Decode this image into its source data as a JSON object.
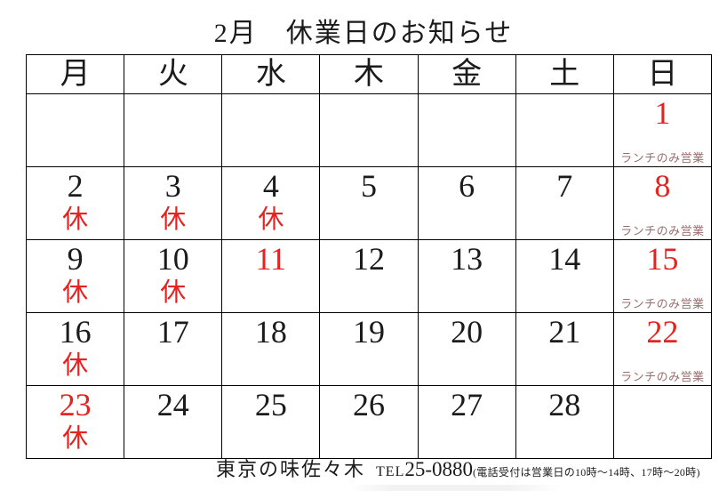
{
  "title": "2月　休業日のお知らせ",
  "colors": {
    "holiday_red": "#e62320",
    "text_black": "#1b1b1b",
    "lunch_note": "#9b6f6f",
    "grid_border": "#000000"
  },
  "weekdays": [
    "月",
    "火",
    "水",
    "木",
    "金",
    "土",
    "日"
  ],
  "weeks": [
    [
      {
        "day": "",
        "day_class": "day",
        "note": "",
        "note_class": "note"
      },
      {
        "day": "",
        "day_class": "day",
        "note": "",
        "note_class": "note"
      },
      {
        "day": "",
        "day_class": "day",
        "note": "",
        "note_class": "note"
      },
      {
        "day": "",
        "day_class": "day",
        "note": "",
        "note_class": "note"
      },
      {
        "day": "",
        "day_class": "day",
        "note": "",
        "note_class": "note"
      },
      {
        "day": "",
        "day_class": "day",
        "note": "",
        "note_class": "note"
      },
      {
        "day": "1",
        "day_class": "day red",
        "note": "ランチのみ営業",
        "note_class": "note lunch"
      }
    ],
    [
      {
        "day": "2",
        "day_class": "day",
        "note": "休",
        "note_class": "note kyu"
      },
      {
        "day": "3",
        "day_class": "day",
        "note": "休",
        "note_class": "note kyu"
      },
      {
        "day": "4",
        "day_class": "day",
        "note": "休",
        "note_class": "note kyu"
      },
      {
        "day": "5",
        "day_class": "day",
        "note": "",
        "note_class": "note"
      },
      {
        "day": "6",
        "day_class": "day",
        "note": "",
        "note_class": "note"
      },
      {
        "day": "7",
        "day_class": "day",
        "note": "",
        "note_class": "note"
      },
      {
        "day": "8",
        "day_class": "day red",
        "note": "ランチのみ営業",
        "note_class": "note lunch"
      }
    ],
    [
      {
        "day": "9",
        "day_class": "day",
        "note": "休",
        "note_class": "note kyu"
      },
      {
        "day": "10",
        "day_class": "day",
        "note": "休",
        "note_class": "note kyu"
      },
      {
        "day": "11",
        "day_class": "day red",
        "note": "",
        "note_class": "note"
      },
      {
        "day": "12",
        "day_class": "day",
        "note": "",
        "note_class": "note"
      },
      {
        "day": "13",
        "day_class": "day",
        "note": "",
        "note_class": "note"
      },
      {
        "day": "14",
        "day_class": "day",
        "note": "",
        "note_class": "note"
      },
      {
        "day": "15",
        "day_class": "day red",
        "note": "ランチのみ営業",
        "note_class": "note lunch"
      }
    ],
    [
      {
        "day": "16",
        "day_class": "day",
        "note": "休",
        "note_class": "note kyu"
      },
      {
        "day": "17",
        "day_class": "day",
        "note": "",
        "note_class": "note"
      },
      {
        "day": "18",
        "day_class": "day",
        "note": "",
        "note_class": "note"
      },
      {
        "day": "19",
        "day_class": "day",
        "note": "",
        "note_class": "note"
      },
      {
        "day": "20",
        "day_class": "day",
        "note": "",
        "note_class": "note"
      },
      {
        "day": "21",
        "day_class": "day",
        "note": "",
        "note_class": "note"
      },
      {
        "day": "22",
        "day_class": "day red",
        "note": "ランチのみ営業",
        "note_class": "note lunch"
      }
    ],
    [
      {
        "day": "23",
        "day_class": "day red",
        "note": "休",
        "note_class": "note kyu"
      },
      {
        "day": "24",
        "day_class": "day",
        "note": "",
        "note_class": "note"
      },
      {
        "day": "25",
        "day_class": "day",
        "note": "",
        "note_class": "note"
      },
      {
        "day": "26",
        "day_class": "day",
        "note": "",
        "note_class": "note"
      },
      {
        "day": "27",
        "day_class": "day",
        "note": "",
        "note_class": "note"
      },
      {
        "day": "28",
        "day_class": "day",
        "note": "",
        "note_class": "note"
      },
      {
        "day": "",
        "day_class": "day",
        "note": "",
        "note_class": "note"
      }
    ]
  ],
  "footer": {
    "shop": "東京の味佐々木",
    "tel_label": "TEL",
    "tel_number": "25-0880",
    "hours": "(電話受付は営業日の10時～14時、17時～20時)"
  }
}
